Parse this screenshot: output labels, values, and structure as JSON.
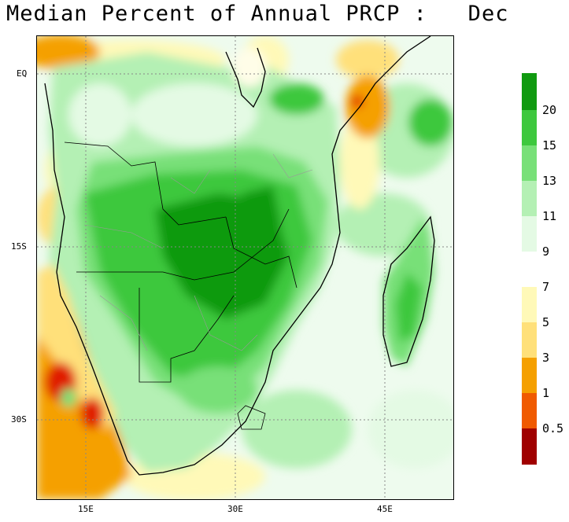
{
  "title": "Median Percent of Annual PRCP :   Dec",
  "map": {
    "lat_labels": [
      "EQ",
      "15S",
      "30S"
    ],
    "lon_labels": [
      "15E",
      "30E",
      "45E"
    ]
  },
  "colorbar": {
    "upper": [
      {
        "label": "20",
        "color": "#109a10"
      },
      {
        "label": "15",
        "color": "#3ec83e"
      },
      {
        "label": "13",
        "color": "#78e078"
      },
      {
        "label": "11",
        "color": "#b4f0b4"
      },
      {
        "label": "9",
        "color": "#e4fae4"
      }
    ],
    "top_color": "#109a10",
    "lower": [
      {
        "label": "7",
        "color": "#fff9b8"
      },
      {
        "label": "5",
        "color": "#ffe07a"
      },
      {
        "label": "3",
        "color": "#f5a000"
      },
      {
        "label": "1",
        "color": "#f05a00"
      },
      {
        "label": "0.5",
        "color": "#e01e00"
      }
    ],
    "bottom_color": "#a00000"
  }
}
